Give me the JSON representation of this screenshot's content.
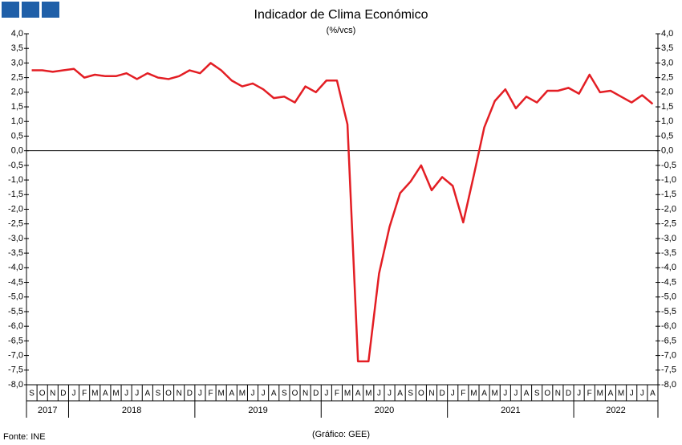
{
  "chart_data": {
    "type": "line",
    "title": "Indicador de Clima Económico",
    "subtitle": "(%/vcs)",
    "source": "Fonte: INE",
    "note": "(Gráfico: GEE)",
    "categories": [
      "S",
      "O",
      "N",
      "D",
      "J",
      "F",
      "M",
      "A",
      "M",
      "J",
      "J",
      "A",
      "S",
      "O",
      "N",
      "D",
      "J",
      "F",
      "M",
      "A",
      "M",
      "J",
      "J",
      "A",
      "S",
      "O",
      "N",
      "D",
      "J",
      "F",
      "M",
      "A",
      "M",
      "J",
      "J",
      "A",
      "S",
      "O",
      "N",
      "D",
      "J",
      "F",
      "M",
      "A",
      "M",
      "J",
      "J",
      "A",
      "S",
      "O",
      "N",
      "D",
      "J",
      "F",
      "M",
      "A",
      "M",
      "J",
      "J",
      "A"
    ],
    "years": [
      "2017",
      "2018",
      "2019",
      "2020",
      "2021",
      "2022"
    ],
    "series": [
      {
        "color": "#e31e24",
        "values": [
          2.75,
          2.75,
          2.7,
          2.75,
          2.8,
          2.5,
          2.6,
          2.55,
          2.55,
          2.65,
          2.45,
          2.65,
          2.5,
          2.45,
          2.55,
          2.75,
          2.65,
          3.0,
          2.75,
          2.4,
          2.2,
          2.3,
          2.1,
          1.8,
          1.85,
          1.65,
          2.2,
          2.0,
          2.4,
          2.4,
          0.9,
          -7.2,
          -7.2,
          -4.2,
          -2.6,
          -1.45,
          -1.05,
          -0.5,
          -1.35,
          -0.9,
          -1.2,
          -2.45,
          -0.85,
          0.8,
          1.7,
          2.1,
          1.45,
          1.85,
          1.65,
          2.05,
          2.05,
          2.15,
          1.95,
          2.6,
          2.0,
          2.05,
          1.85,
          1.65,
          1.9,
          1.6
        ]
      }
    ],
    "ylim": [
      -8,
      4
    ],
    "yticks": [
      {
        "value": 4,
        "label": "4,0"
      },
      {
        "value": 3.5,
        "label": "3,5"
      },
      {
        "value": 3,
        "label": "3,0"
      },
      {
        "value": 2.5,
        "label": "2,5"
      },
      {
        "value": 2,
        "label": "2,0"
      },
      {
        "value": 1.5,
        "label": "1,5"
      },
      {
        "value": 1,
        "label": "1,0"
      },
      {
        "value": 0.5,
        "label": "0,5"
      },
      {
        "value": 0,
        "label": "0,0"
      },
      {
        "value": -0.5,
        "label": "-0,5"
      },
      {
        "value": -1,
        "label": "-1,0"
      },
      {
        "value": -1.5,
        "label": "-1,5"
      },
      {
        "value": -2,
        "label": "-2,0"
      },
      {
        "value": -2.5,
        "label": "-2,5"
      },
      {
        "value": -3,
        "label": "-3,0"
      },
      {
        "value": -3.5,
        "label": "-3,5"
      },
      {
        "value": -4,
        "label": "-4,0"
      },
      {
        "value": -4.5,
        "label": "-4,5"
      },
      {
        "value": -5,
        "label": "-5,0"
      },
      {
        "value": -5.5,
        "label": "-5,5"
      },
      {
        "value": -6,
        "label": "-6,0"
      },
      {
        "value": -6.5,
        "label": "-6,5"
      },
      {
        "value": -7,
        "label": "-7,0"
      },
      {
        "value": -7.5,
        "label": "-7,5"
      },
      {
        "value": -8,
        "label": "-8,0"
      }
    ]
  }
}
